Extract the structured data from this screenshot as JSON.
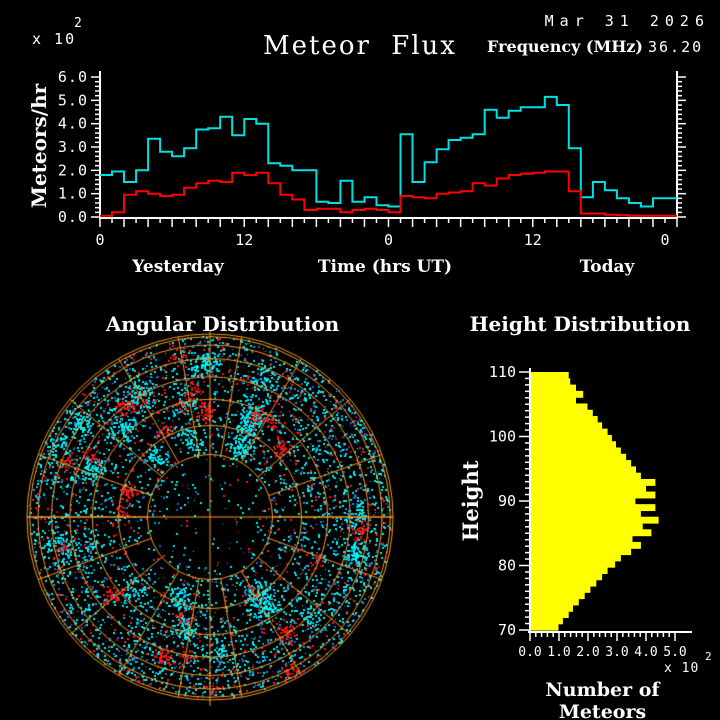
{
  "header": {
    "date": "Mar 31 2026",
    "title": "Meteor Flux",
    "frequency_label": "Frequency (MHz)",
    "frequency_value": "36.20"
  },
  "flux_chart": {
    "y_multiplier": "x 10",
    "y_multiplier_exponent": "2",
    "ylabel": "Meteors/hr",
    "y_ticks": [
      "0.0",
      "1.0",
      "2.0",
      "3.0",
      "4.0",
      "5.0",
      "6.0"
    ],
    "x_ticks": [
      "0",
      "12",
      "0",
      "12",
      "0"
    ],
    "x_left_label": "Yesterday",
    "xlabel": "Time (hrs UT)",
    "x_right_label": "Today"
  },
  "angular_chart": {
    "title": "Angular Distribution"
  },
  "height_chart": {
    "title": "Height Distribution",
    "ylabel": "Height",
    "xlabel": "Number of Meteors",
    "x_multiplier": "x 10",
    "x_multiplier_exponent": "2",
    "y_ticks": [
      "70",
      "80",
      "90",
      "100",
      "110"
    ],
    "x_ticks": [
      "0.0",
      "1.0",
      "2.0",
      "3.0",
      "4.0",
      "5.0"
    ]
  },
  "colors": {
    "background": "#000000",
    "axis_text": "#FFFFFF",
    "flux_series_cyan": "#00E0E0",
    "flux_series_red": "#FF0000",
    "histogram_bar": "#FFFF00",
    "sky_grid": "#F09A28",
    "sky_dot_cyan": "#00F2F2",
    "sky_dot_blue": "#00A0E0",
    "sky_dot_darkblue": "#2860C8",
    "sky_dot_red": "#FF1616",
    "sky_dot_darkred": "#A81010"
  },
  "chart_data": [
    {
      "type": "line",
      "title": "Meteor Flux",
      "step": true,
      "xlabel": "Time (hrs UT)",
      "ylabel": "Meteors/hr (x 10^2)",
      "x_range_hours": [
        0,
        48
      ],
      "ylim": [
        0,
        6
      ],
      "x_tick_hours": [
        0,
        12,
        24,
        36,
        47
      ],
      "x_tick_labels": [
        "0",
        "12",
        "0",
        "12",
        "0"
      ],
      "day_labels": [
        "Yesterday",
        "Today"
      ],
      "series": [
        {
          "name": "cyan",
          "color": "#00E0E0",
          "values": [
            1.8,
            1.95,
            1.5,
            2.0,
            3.35,
            2.8,
            2.6,
            2.95,
            3.75,
            3.8,
            4.3,
            3.5,
            4.2,
            4.0,
            2.3,
            2.2,
            2.0,
            2.0,
            0.65,
            0.6,
            1.55,
            0.65,
            0.85,
            0.5,
            0.45,
            3.55,
            1.5,
            2.35,
            2.9,
            3.3,
            3.4,
            3.55,
            4.6,
            4.25,
            4.55,
            4.7,
            4.7,
            5.15,
            4.8,
            2.95,
            0.85,
            1.5,
            1.15,
            0.8,
            0.6,
            0.45,
            0.8,
            0.8
          ]
        },
        {
          "name": "red",
          "color": "#FF0000",
          "values": [
            0.05,
            0.2,
            0.95,
            1.1,
            1.0,
            0.9,
            0.95,
            1.25,
            1.45,
            1.55,
            1.5,
            1.9,
            1.8,
            1.9,
            1.45,
            0.95,
            0.75,
            0.3,
            0.35,
            0.35,
            0.2,
            0.3,
            0.35,
            0.3,
            0.2,
            0.9,
            0.85,
            0.8,
            1.0,
            1.05,
            1.1,
            1.45,
            1.35,
            1.65,
            1.8,
            1.85,
            1.9,
            1.95,
            1.95,
            1.1,
            0.15,
            0.15,
            0.1,
            0.08,
            0.05,
            0.05,
            0.05,
            0.05
          ]
        }
      ]
    },
    {
      "type": "scatter",
      "title": "Angular Distribution",
      "projection": "all-sky polar disk, elevation circles every 10 deg, radial azimuth lines, crosshair",
      "grid_color": "#F09A28",
      "elevation_circle_fractions": [
        0.342,
        0.5,
        0.643,
        0.766,
        0.866,
        0.94,
        0.985,
        1.0
      ],
      "points": {
        "style": "dense 2px square speckle, heavier in outer ring, sparse near centre",
        "base_count": 5200,
        "cyan_cluster_count": 26,
        "red_cluster_count": 26,
        "seed": 1234567
      }
    },
    {
      "type": "bar",
      "orientation": "horizontal",
      "title": "Height Distribution",
      "xlabel": "Number of Meteors",
      "ylabel": "Height",
      "x_scale": "x 10^2",
      "xlim": [
        0,
        5
      ],
      "ylim": [
        70,
        110
      ],
      "bin_km": 1,
      "bar_color": "#FFFF00",
      "heights_km_top_to_bottom": [
        110,
        70
      ],
      "values_top_to_bottom": [
        1.3,
        1.35,
        1.55,
        1.8,
        1.55,
        1.95,
        2.13,
        2.3,
        2.45,
        2.64,
        2.79,
        2.93,
        3.1,
        3.28,
        3.45,
        3.62,
        3.79,
        4.29,
        3.97,
        4.29,
        3.6,
        4.29,
        3.79,
        4.4,
        3.85,
        4.15,
        3.5,
        3.79,
        3.45,
        3.1,
        2.9,
        2.64,
        2.45,
        2.25,
        2.05,
        1.85,
        1.65,
        1.45,
        1.3,
        1.1,
        0.95
      ]
    }
  ]
}
